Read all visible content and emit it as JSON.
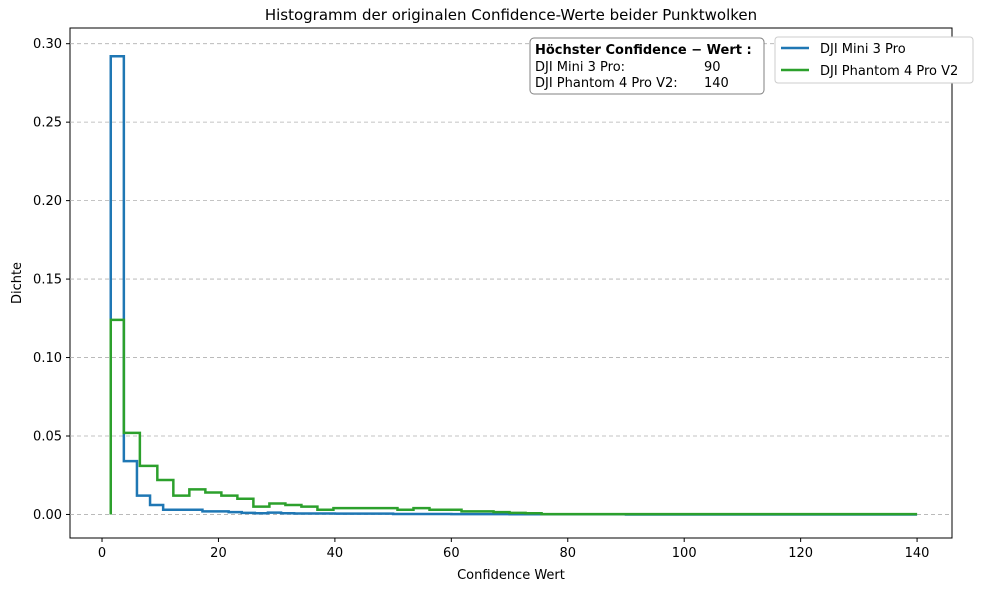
{
  "chart_data": {
    "type": "line",
    "title": "Histogramm der originalen Confidence-Werte beider Punktwolken",
    "xlabel": "Confidence Wert",
    "ylabel": "Dichte",
    "xlim": [
      -5.5,
      146
    ],
    "ylim": [
      -0.015,
      0.31
    ],
    "x_ticks": [
      0,
      20,
      40,
      60,
      80,
      100,
      120,
      140
    ],
    "y_ticks": [
      0.0,
      0.05,
      0.1,
      0.15,
      0.2,
      0.25,
      0.3
    ],
    "y_tick_labels": [
      "0.00",
      "0.05",
      "0.10",
      "0.15",
      "0.20",
      "0.25",
      "0.30"
    ],
    "grid": "horizontal dashed",
    "legend_position": "top-right",
    "series": [
      {
        "name": "DJI Mini 3 Pro",
        "color": "#1f77b4",
        "step_x": [
          1.5,
          3.75,
          6.0,
          8.25,
          10.5,
          12.75,
          15.0,
          17.25,
          19.5,
          21.75,
          24.0,
          26.25,
          28.5,
          30.75,
          33.0,
          40.0,
          50.0,
          60.0,
          70.0,
          80.0,
          90.0,
          100.0,
          110.0,
          120.0,
          130.0,
          140.0
        ],
        "step_y": [
          0.292,
          0.034,
          0.012,
          0.006,
          0.003,
          0.003,
          0.003,
          0.002,
          0.002,
          0.0015,
          0.001,
          0.0008,
          0.0012,
          0.0008,
          0.0006,
          0.0005,
          0.0003,
          0.0002,
          0.0001,
          0.0001,
          0.0,
          0.0,
          0.0,
          0.0,
          0.0
        ]
      },
      {
        "name": "DJI Phantom 4 Pro V2",
        "color": "#2ca02c",
        "step_x": [
          1.5,
          3.75,
          6.5,
          9.5,
          12.25,
          15.0,
          17.75,
          20.5,
          23.25,
          26.0,
          28.75,
          31.5,
          34.25,
          37.0,
          39.75,
          42.5,
          45.25,
          48.0,
          50.75,
          53.5,
          56.25,
          59.0,
          61.75,
          64.5,
          67.25,
          70.0,
          72.75,
          75.5,
          140.0
        ],
        "step_y": [
          0.124,
          0.052,
          0.031,
          0.022,
          0.012,
          0.016,
          0.014,
          0.012,
          0.01,
          0.005,
          0.007,
          0.006,
          0.005,
          0.003,
          0.004,
          0.004,
          0.004,
          0.004,
          0.003,
          0.004,
          0.003,
          0.003,
          0.002,
          0.002,
          0.0015,
          0.001,
          0.0008,
          0.0002
        ]
      }
    ],
    "info_box": {
      "title": "Höchster Confidence − Wert :",
      "rows": [
        {
          "label": "DJI Mini 3 Pro:",
          "value": "90"
        },
        {
          "label": "DJI Phantom 4 Pro V2:",
          "value": "140"
        }
      ]
    }
  }
}
